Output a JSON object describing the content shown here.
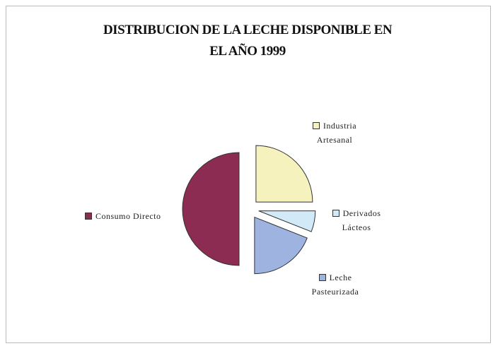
{
  "chart_data": {
    "type": "pie",
    "title": "DISTRIBUCION DE LA LECHE DISPONIBLE EN EL AÑO 1999",
    "categories": [
      "Industria Artesanal",
      "Derivados Lácteos",
      "Leche Pasteurizada",
      "Consumo Directo"
    ],
    "values": [
      25,
      6,
      19,
      50
    ],
    "colors": [
      "#f6f2bd",
      "#d2eaf8",
      "#9fb3e0",
      "#8c2c52"
    ],
    "exploded": true
  }
}
